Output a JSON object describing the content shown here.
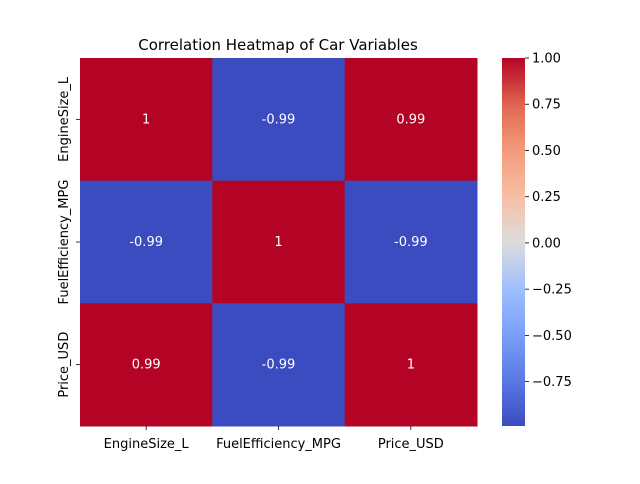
{
  "chart_data": {
    "type": "heatmap",
    "title": "Correlation Heatmap of Car Variables",
    "xlabel": "",
    "ylabel": "",
    "x_categories": [
      "EngineSize_L",
      "FuelEfficiency_MPG",
      "Price_USD"
    ],
    "y_categories": [
      "EngineSize_L",
      "FuelEfficiency_MPG",
      "Price_USD"
    ],
    "values": [
      [
        1,
        -0.99,
        0.99
      ],
      [
        -0.99,
        1,
        -0.99
      ],
      [
        0.99,
        -0.99,
        1
      ]
    ],
    "annotations": [
      [
        "1",
        "-0.99",
        "0.99"
      ],
      [
        "-0.99",
        "1",
        "-0.99"
      ],
      [
        "0.99",
        "-0.99",
        "1"
      ]
    ],
    "colormap": "coolwarm",
    "colors": {
      "positive": "#b40426",
      "negative": "#3b4cc0",
      "neutral": "#dddddd",
      "annotation_text": "#ffffff"
    },
    "colorbar": {
      "range": [
        -0.99,
        1.0
      ],
      "ticks": [
        1.0,
        0.75,
        0.5,
        0.25,
        0.0,
        -0.25,
        -0.5,
        -0.75
      ],
      "tick_labels": [
        "1.00",
        "0.75",
        "0.50",
        "0.25",
        "0.00",
        "−0.25",
        "−0.50",
        "−0.75"
      ]
    }
  }
}
